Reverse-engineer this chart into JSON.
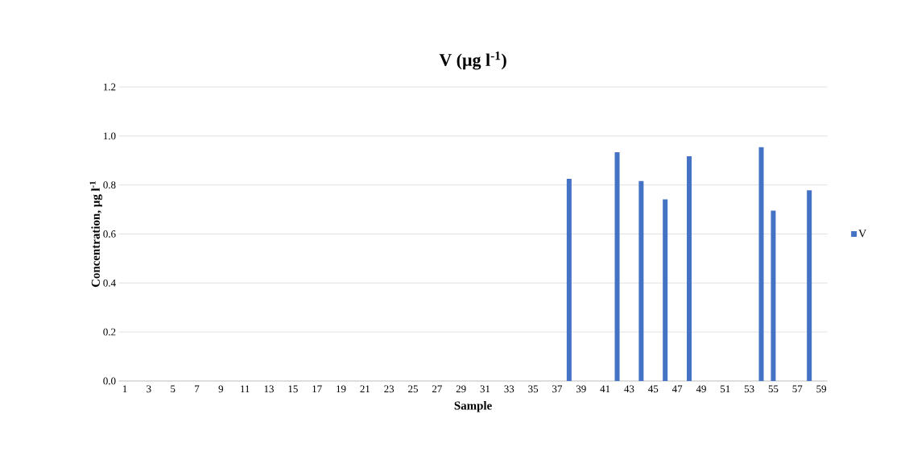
{
  "chart_data": {
    "type": "bar",
    "title": "V (µg l$^{-1}$)",
    "xlabel": "Sample",
    "ylabel": "Concentration, µg l$^{-1}$",
    "categories": [
      "1",
      null,
      "3",
      null,
      "5",
      null,
      "7",
      null,
      "9",
      null,
      "11",
      null,
      "13",
      null,
      "15",
      null,
      "17",
      null,
      "19",
      null,
      "21",
      null,
      "23",
      null,
      "25",
      null,
      "27",
      null,
      "29",
      null,
      "31",
      null,
      "33",
      null,
      "35",
      null,
      "37",
      null,
      "39",
      null,
      "41",
      null,
      "43",
      null,
      "45",
      null,
      "47",
      null,
      "49",
      null,
      "51",
      null,
      "53",
      null,
      "55",
      null,
      "57",
      null,
      "59"
    ],
    "series": [
      {
        "name": "V",
        "color": "#4472c4",
        "values": [
          null,
          null,
          null,
          null,
          null,
          null,
          null,
          null,
          null,
          null,
          null,
          null,
          null,
          null,
          null,
          null,
          null,
          null,
          null,
          null,
          null,
          null,
          null,
          null,
          null,
          null,
          null,
          null,
          null,
          null,
          null,
          null,
          null,
          null,
          null,
          null,
          null,
          0.825,
          null,
          null,
          null,
          0.934,
          null,
          0.816,
          null,
          0.741,
          null,
          0.917,
          null,
          null,
          null,
          null,
          null,
          0.954,
          0.695,
          null,
          null,
          0.778,
          null
        ]
      }
    ],
    "ylim": [
      0,
      1.2
    ],
    "yticks": [
      {
        "value": 0,
        "label": "0.0"
      },
      {
        "value": 0.2,
        "label": "0.2"
      },
      {
        "value": 0.4,
        "label": "0.4"
      },
      {
        "value": 0.6,
        "label": "0.6"
      },
      {
        "value": 0.8,
        "label": "0.8"
      },
      {
        "value": 1.0,
        "label": "1.0"
      },
      {
        "value": 1.2,
        "label": "1.2"
      }
    ],
    "grid": "y",
    "legend": "right"
  }
}
